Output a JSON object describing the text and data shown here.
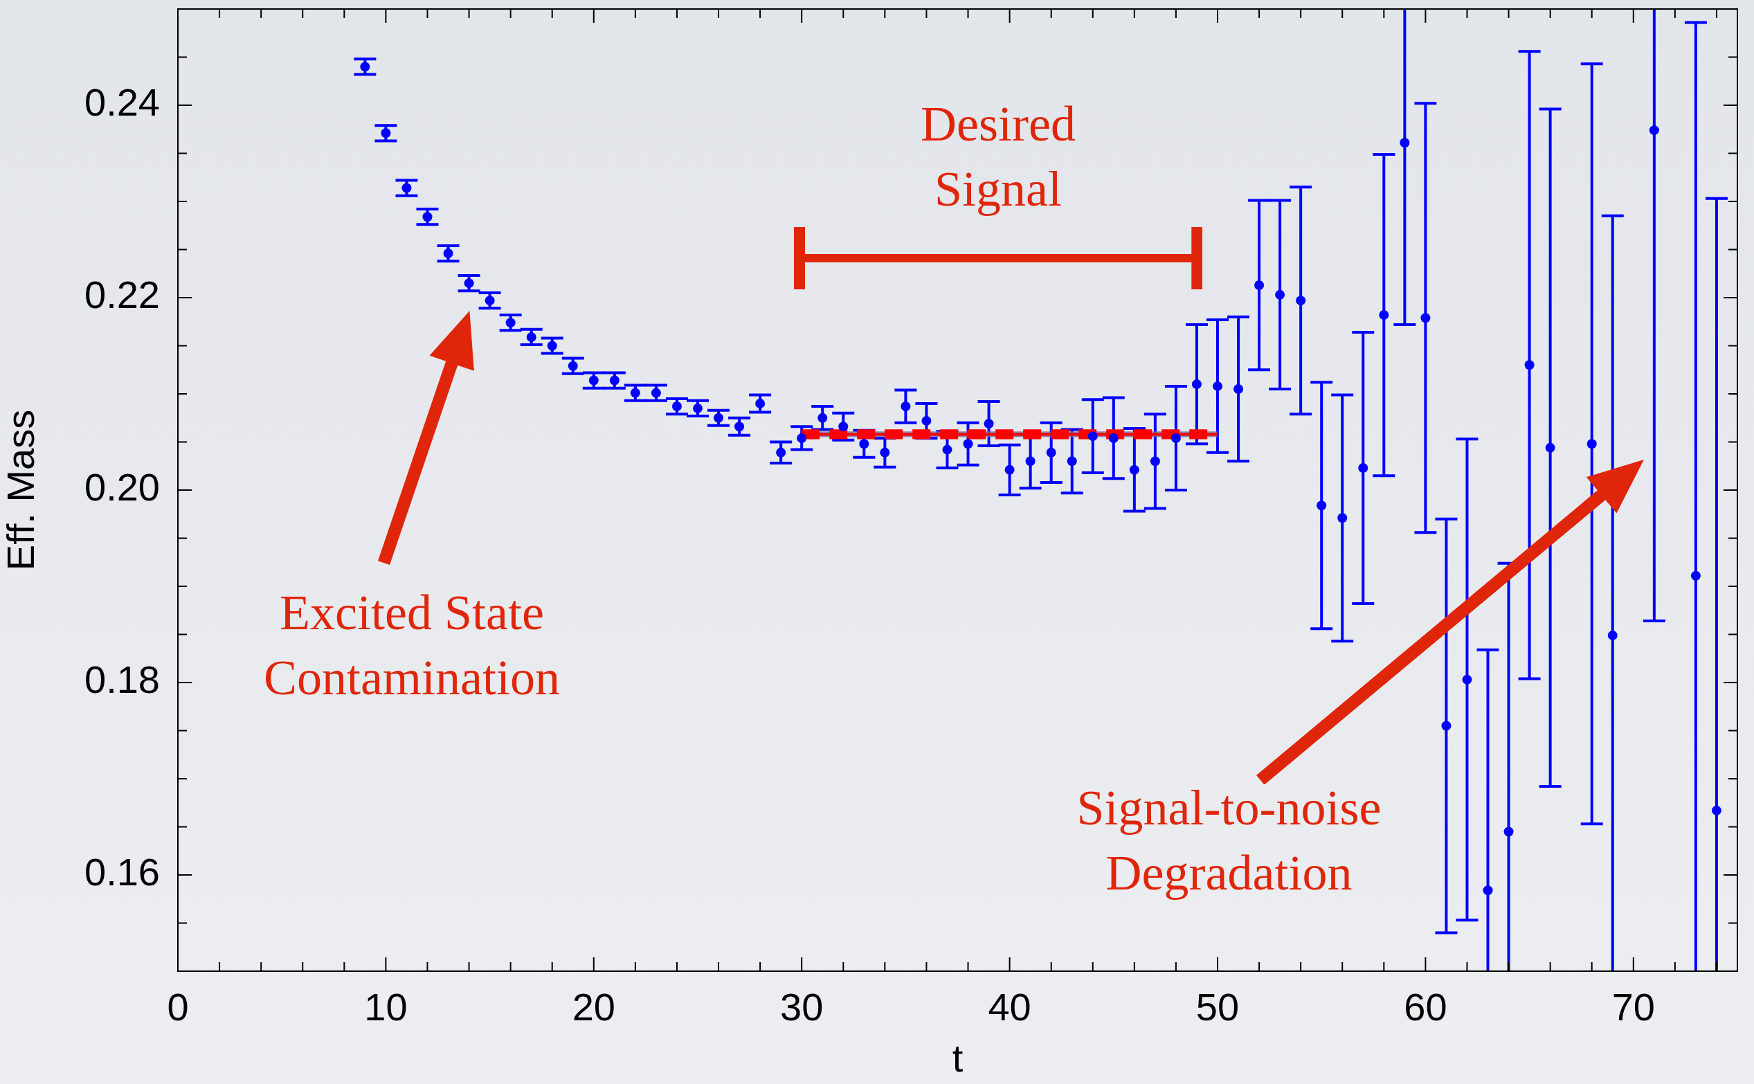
{
  "chart_data": {
    "type": "scatter",
    "xlabel": "t",
    "ylabel": "Eff. Mass",
    "xlim": [
      0,
      75
    ],
    "ylim": [
      0.15,
      0.25
    ],
    "xticks": [
      0,
      {
        "value": 2,
        "label": null
      },
      {
        "value": 4,
        "label": null
      },
      {
        "value": 6,
        "label": null
      },
      {
        "value": 8,
        "label": null
      },
      10,
      {
        "value": 12,
        "label": null
      },
      {
        "value": 14,
        "label": null
      },
      {
        "value": 16,
        "label": null
      },
      {
        "value": 18,
        "label": null
      },
      20,
      {
        "value": 22,
        "label": null
      },
      {
        "value": 24,
        "label": null
      },
      {
        "value": 26,
        "label": null
      },
      {
        "value": 28,
        "label": null
      },
      30,
      {
        "value": 32,
        "label": null
      },
      {
        "value": 34,
        "label": null
      },
      {
        "value": 36,
        "label": null
      },
      {
        "value": 38,
        "label": null
      },
      40,
      {
        "value": 42,
        "label": null
      },
      {
        "value": 44,
        "label": null
      },
      {
        "value": 46,
        "label": null
      },
      {
        "value": 48,
        "label": null
      },
      50,
      {
        "value": 52,
        "label": null
      },
      {
        "value": 54,
        "label": null
      },
      {
        "value": 56,
        "label": null
      },
      {
        "value": 58,
        "label": null
      },
      60,
      {
        "value": 62,
        "label": null
      },
      {
        "value": 64,
        "label": null
      },
      {
        "value": 66,
        "label": null
      },
      {
        "value": 68,
        "label": null
      },
      70,
      {
        "value": 72,
        "label": null
      },
      {
        "value": 74,
        "label": null
      }
    ],
    "yticks": [
      {
        "value": 0.155,
        "label": null
      },
      0.16,
      {
        "value": 0.165,
        "label": null
      },
      {
        "value": 0.17,
        "label": null
      },
      {
        "value": 0.175,
        "label": null
      },
      0.18,
      {
        "value": 0.185,
        "label": null
      },
      {
        "value": 0.19,
        "label": null
      },
      {
        "value": 0.195,
        "label": null
      },
      {
        "value": 0.2,
        "label": "0.20"
      },
      {
        "value": 0.205,
        "label": null
      },
      {
        "value": 0.21,
        "label": null
      },
      {
        "value": 0.215,
        "label": null
      },
      0.22,
      {
        "value": 0.225,
        "label": null
      },
      {
        "value": 0.23,
        "label": null
      },
      {
        "value": 0.235,
        "label": null
      },
      0.24,
      {
        "value": 0.245,
        "label": null
      }
    ],
    "marker": "circle",
    "series": [
      {
        "color": "#0000ff",
        "x": [
          9,
          10,
          11,
          12,
          13,
          14,
          15,
          16,
          17,
          18,
          19,
          20,
          21,
          22,
          23,
          24,
          25,
          26,
          27,
          28,
          29,
          30,
          31,
          32,
          33,
          34,
          35,
          36,
          37,
          38,
          39,
          40,
          41,
          42,
          43,
          44,
          45,
          46,
          47,
          48,
          49,
          50,
          51,
          52,
          53,
          54,
          55,
          56,
          57,
          58,
          59,
          60,
          61,
          62,
          63,
          64,
          65,
          66,
          67,
          68,
          69,
          70,
          71,
          72,
          73,
          74
        ],
        "values": [
          0.244,
          0.2371,
          0.2314,
          0.2284,
          0.2246,
          0.2215,
          0.2197,
          0.2174,
          0.2159,
          0.215,
          0.2129,
          0.2114,
          0.2114,
          0.2101,
          0.2101,
          0.2087,
          0.2085,
          0.2075,
          0.2066,
          0.209,
          0.2039,
          0.2054,
          0.2075,
          0.2066,
          0.2048,
          0.2039,
          0.2087,
          0.2072,
          0.2042,
          0.2048,
          0.2069,
          0.2021,
          0.203,
          0.2039,
          0.203,
          0.2056,
          0.2054,
          0.2021,
          0.203,
          0.2054,
          0.211,
          0.2108,
          0.2105,
          0.2213,
          0.2203,
          0.2197,
          0.1984,
          0.1971,
          0.2023,
          0.2182,
          0.2361,
          0.2179,
          0.1755,
          0.1803,
          0.1584,
          0.1645,
          0.213,
          0.2044,
          null,
          0.2048,
          0.1849,
          null,
          0.2374,
          null,
          0.1911,
          0.1667
        ],
        "errors": [
          0.0008,
          0.0008,
          0.0008,
          0.0008,
          0.0008,
          0.0008,
          0.0008,
          0.0008,
          0.0008,
          0.0008,
          0.0008,
          0.0008,
          0.0008,
          0.0008,
          0.0008,
          0.0008,
          0.0008,
          0.0008,
          0.0009,
          0.0009,
          0.0011,
          0.0012,
          0.0012,
          0.0014,
          0.0014,
          0.0015,
          0.0017,
          0.0018,
          0.0019,
          0.0022,
          0.0023,
          0.0026,
          0.0028,
          0.0031,
          0.0033,
          0.0038,
          0.0042,
          0.0043,
          0.0049,
          0.0054,
          0.0062,
          0.0069,
          0.0075,
          0.0088,
          0.0098,
          0.0118,
          0.0128,
          0.0128,
          0.0141,
          0.0167,
          [
            0.2172,
            0.25
          ],
          0.0223,
          0.0215,
          0.025,
          [
            0.15,
            0.1834
          ],
          [
            0.15,
            0.1924
          ],
          0.0326,
          0.0352,
          null,
          0.0395,
          [
            0.15,
            0.2285
          ],
          null,
          [
            0.1864,
            0.25
          ],
          null,
          [
            0.15,
            0.2486
          ],
          [
            0.15,
            0.2303
          ]
        ]
      },
      {
        "type": "line",
        "color": "#ff0000",
        "line_style": "solid",
        "marker": "none",
        "x": [
          30,
          50
        ],
        "values": [
          0.2058,
          0.2058
        ],
        "lower": [
          0.2055,
          0.2055
        ],
        "upper": [
          0.2061,
          0.2061
        ]
      },
      {
        "type": "line",
        "color": "#ff0000",
        "line_style": "dashed",
        "marker": "none",
        "x": [
          30,
          50
        ],
        "values": [
          0.2061,
          0.2061
        ]
      },
      {
        "type": "line",
        "color": "#ff0000",
        "line_style": "dashed",
        "marker": "none",
        "x": [
          30,
          50
        ],
        "values": [
          0.2055,
          0.2055
        ]
      }
    ],
    "annotations": [
      "Excited State\nContamination",
      "Desired\nSignal",
      "Signal-to-noise\nDegradation"
    ]
  }
}
